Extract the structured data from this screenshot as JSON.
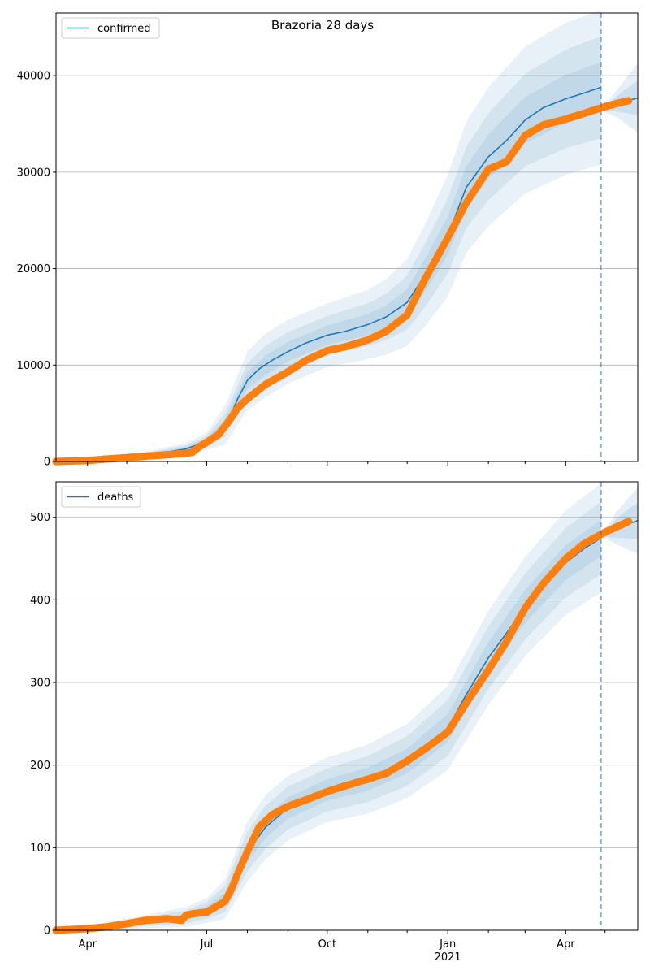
{
  "title": "Brazoria 28 days",
  "colors": {
    "model_line": "#1f77b4",
    "observed": "#ff7f0e",
    "band": "#1f77b4",
    "grid": "#b0b0b0",
    "forecast_line": "#1f77b4"
  },
  "chart_data": [
    {
      "type": "line",
      "name": "confirmed",
      "legend": "confirmed",
      "legend_position": "top-left",
      "grid": "horizontal",
      "x_range": [
        "2020-03-08",
        "2021-05-26"
      ],
      "ylim": [
        0,
        46500
      ],
      "yticks": [
        0,
        10000,
        20000,
        30000,
        40000
      ],
      "ytick_labels": [
        "0",
        "10000",
        "20000",
        "30000",
        "40000"
      ],
      "forecast_date": "2021-04-28",
      "model": {
        "x": [
          "2020-03-08",
          "2020-04-15",
          "2020-05-15",
          "2020-06-15",
          "2020-07-01",
          "2020-07-10",
          "2020-07-18",
          "2020-07-25",
          "2020-08-01",
          "2020-08-10",
          "2020-08-20",
          "2020-09-01",
          "2020-09-15",
          "2020-10-01",
          "2020-10-15",
          "2020-11-01",
          "2020-11-15",
          "2020-12-01",
          "2020-12-15",
          "2021-01-01",
          "2021-01-15",
          "2021-02-01",
          "2021-02-15",
          "2021-03-01",
          "2021-03-15",
          "2021-04-01",
          "2021-04-15",
          "2021-04-28"
        ],
        "y": [
          0,
          150,
          600,
          1300,
          2100,
          3000,
          4400,
          6600,
          8400,
          9600,
          10500,
          11400,
          12300,
          13100,
          13500,
          14200,
          15000,
          16500,
          19400,
          23400,
          28400,
          31600,
          33300,
          35400,
          36700,
          37600,
          38200,
          38800
        ]
      },
      "observed": {
        "x": [
          "2020-03-08",
          "2020-04-01",
          "2020-04-15",
          "2020-05-01",
          "2020-05-15",
          "2020-06-01",
          "2020-06-15",
          "2020-06-20",
          "2020-06-25",
          "2020-07-01",
          "2020-07-10",
          "2020-07-18",
          "2020-07-25",
          "2020-08-01",
          "2020-08-15",
          "2020-09-01",
          "2020-09-15",
          "2020-10-01",
          "2020-10-15",
          "2020-11-01",
          "2020-11-15",
          "2020-12-01",
          "2020-12-15",
          "2021-01-01",
          "2021-01-15",
          "2021-02-01",
          "2021-02-15",
          "2021-03-01",
          "2021-03-15",
          "2021-04-01",
          "2021-04-15",
          "2021-05-01",
          "2021-05-15",
          "2021-05-19"
        ],
        "y": [
          0,
          100,
          250,
          400,
          550,
          700,
          850,
          950,
          1500,
          2000,
          2800,
          4200,
          5600,
          6500,
          8000,
          9300,
          10500,
          11500,
          11900,
          12600,
          13500,
          15200,
          19000,
          23200,
          26800,
          30300,
          31100,
          33800,
          34900,
          35500,
          36100,
          36800,
          37300,
          37400
        ]
      },
      "bands": {
        "x": [
          "2020-03-08",
          "2020-05-01",
          "2020-06-15",
          "2020-07-01",
          "2020-07-15",
          "2020-08-01",
          "2020-08-15",
          "2020-09-01",
          "2020-10-01",
          "2020-11-01",
          "2020-11-15",
          "2020-12-01",
          "2020-12-15",
          "2021-01-01",
          "2021-01-15",
          "2021-02-01",
          "2021-03-01",
          "2021-04-01",
          "2021-04-28"
        ],
        "mid": [
          0,
          400,
          1300,
          2100,
          3800,
          8400,
          10000,
          11400,
          13100,
          14200,
          15000,
          16500,
          19400,
          23400,
          28400,
          31600,
          35400,
          37600,
          38800
        ],
        "spread": [
          [
            0,
            60,
            200,
            300,
            600,
            900,
            1000,
            1000,
            1000,
            1100,
            1200,
            1400,
            1700,
            2000,
            2200,
            2300,
            2400,
            2500,
            2600
          ],
          [
            0,
            120,
            350,
            550,
            1200,
            1800,
            2000,
            2000,
            2000,
            2200,
            2400,
            2800,
            3300,
            3900,
            4200,
            4500,
            4800,
            5100,
            5300
          ],
          [
            0,
            200,
            600,
            900,
            2000,
            3000,
            3300,
            3300,
            3300,
            3600,
            3900,
            4500,
            5300,
            6300,
            6800,
            7200,
            7600,
            7900,
            8000
          ]
        ]
      },
      "extension": {
        "x": [
          "2021-04-28",
          "2021-05-10",
          "2021-05-26"
        ],
        "y": [
          36400,
          37100,
          37700
        ],
        "spread": [
          [
            0,
            800,
            1800
          ],
          [
            0,
            1400,
            3600
          ]
        ]
      }
    },
    {
      "type": "line",
      "name": "deaths",
      "legend": "deaths",
      "legend_position": "top-left",
      "grid": "horizontal",
      "x_range": [
        "2020-03-08",
        "2021-05-26"
      ],
      "xticks": [
        "2020-04-01",
        "2020-07-01",
        "2020-10-01",
        "2021-01-01",
        "2021-04-01"
      ],
      "xtick_labels": [
        "Apr",
        "Jul",
        "Oct",
        "Jan",
        "Apr"
      ],
      "xtick_sublabel": "2021",
      "ylim": [
        0,
        543
      ],
      "yticks": [
        0,
        100,
        200,
        300,
        400,
        500
      ],
      "ytick_labels": [
        "0",
        "100",
        "200",
        "300",
        "400",
        "500"
      ],
      "forecast_date": "2021-04-28",
      "model": {
        "x": [
          "2020-03-08",
          "2020-04-15",
          "2020-05-15",
          "2020-06-15",
          "2020-07-01",
          "2020-07-15",
          "2020-07-22",
          "2020-08-01",
          "2020-08-15",
          "2020-09-01",
          "2020-09-15",
          "2020-10-01",
          "2020-11-01",
          "2020-12-01",
          "2021-01-01",
          "2021-01-15",
          "2021-02-01",
          "2021-02-15",
          "2021-03-01",
          "2021-03-15",
          "2021-04-01",
          "2021-04-15",
          "2021-04-28"
        ],
        "y": [
          0,
          3,
          10,
          16,
          24,
          38,
          55,
          95,
          125,
          148,
          162,
          170,
          183,
          205,
          245,
          285,
          330,
          360,
          392,
          420,
          445,
          462,
          475
        ]
      },
      "observed": {
        "x": [
          "2020-03-08",
          "2020-04-01",
          "2020-04-15",
          "2020-05-01",
          "2020-05-15",
          "2020-06-01",
          "2020-06-12",
          "2020-06-15",
          "2020-06-20",
          "2020-07-01",
          "2020-07-15",
          "2020-07-20",
          "2020-07-25",
          "2020-08-01",
          "2020-08-10",
          "2020-08-20",
          "2020-09-01",
          "2020-09-15",
          "2020-10-01",
          "2020-10-15",
          "2020-11-01",
          "2020-11-15",
          "2020-12-01",
          "2020-12-15",
          "2021-01-01",
          "2021-01-15",
          "2021-02-01",
          "2021-02-15",
          "2021-03-01",
          "2021-03-15",
          "2021-04-01",
          "2021-04-15",
          "2021-05-01",
          "2021-05-19"
        ],
        "y": [
          0,
          2,
          4,
          8,
          12,
          14,
          12,
          18,
          20,
          22,
          35,
          50,
          70,
          95,
          125,
          140,
          150,
          158,
          168,
          175,
          183,
          190,
          205,
          220,
          240,
          275,
          315,
          350,
          390,
          420,
          450,
          468,
          482,
          495
        ]
      },
      "bands": {
        "x": [
          "2020-03-08",
          "2020-05-01",
          "2020-06-15",
          "2020-07-01",
          "2020-07-15",
          "2020-08-01",
          "2020-08-15",
          "2020-09-01",
          "2020-10-01",
          "2020-11-01",
          "2020-12-01",
          "2021-01-01",
          "2021-02-01",
          "2021-03-01",
          "2021-04-01",
          "2021-04-28"
        ],
        "mid": [
          0,
          8,
          16,
          24,
          38,
          95,
          125,
          148,
          170,
          183,
          205,
          245,
          330,
          392,
          445,
          475
        ],
        "spread": [
          [
            0,
            2,
            4,
            5,
            8,
            12,
            13,
            13,
            13,
            14,
            15,
            17,
            19,
            20,
            21,
            22
          ],
          [
            0,
            4,
            8,
            10,
            16,
            24,
            26,
            26,
            26,
            28,
            30,
            34,
            38,
            40,
            42,
            44
          ],
          [
            0,
            6,
            12,
            15,
            24,
            36,
            39,
            39,
            39,
            42,
            45,
            51,
            57,
            60,
            63,
            66
          ]
        ]
      },
      "extension": {
        "x": [
          "2021-04-28",
          "2021-05-10",
          "2021-05-26"
        ],
        "y": [
          477,
          487,
          496
        ],
        "spread": [
          [
            0,
            12,
            22
          ],
          [
            0,
            20,
            40
          ]
        ]
      }
    }
  ]
}
